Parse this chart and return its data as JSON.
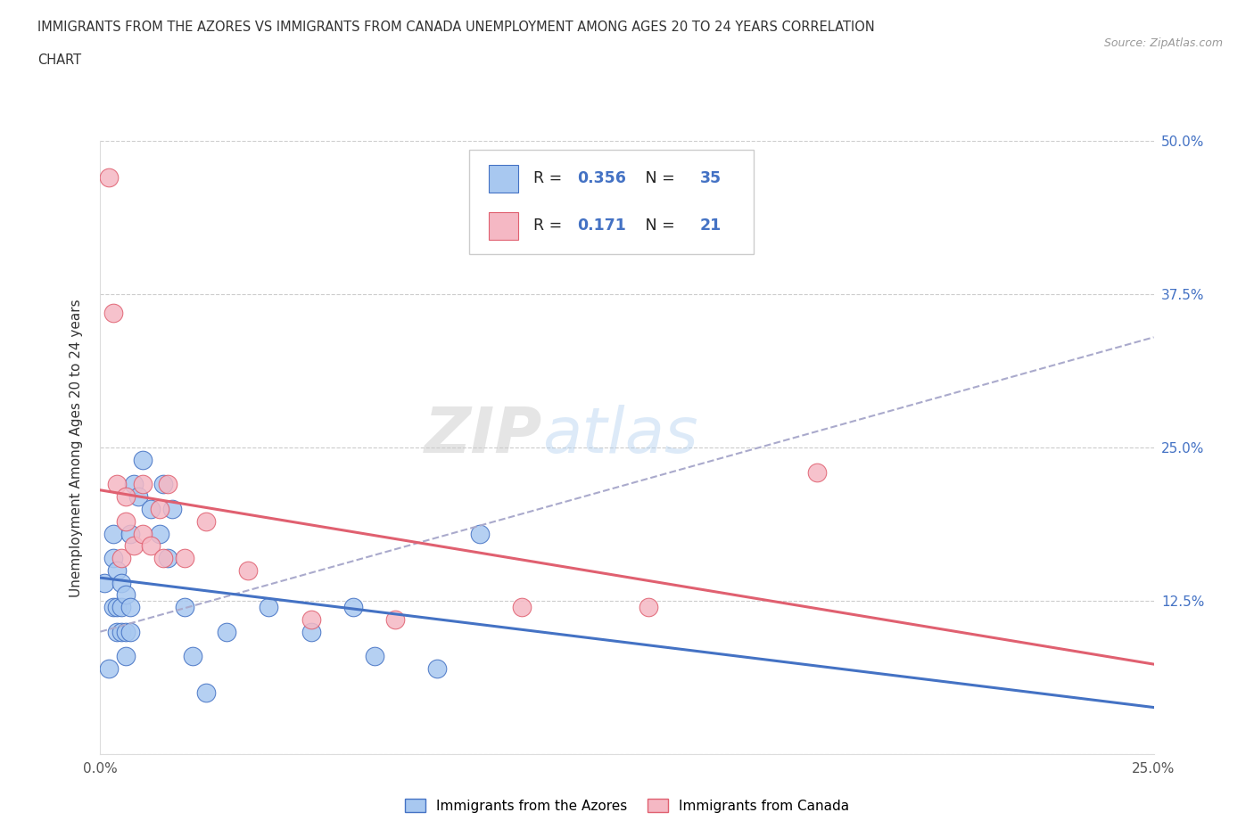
{
  "title_line1": "IMMIGRANTS FROM THE AZORES VS IMMIGRANTS FROM CANADA UNEMPLOYMENT AMONG AGES 20 TO 24 YEARS CORRELATION",
  "title_line2": "CHART",
  "source_text": "Source: ZipAtlas.com",
  "ylabel": "Unemployment Among Ages 20 to 24 years",
  "watermark_zip": "ZIP",
  "watermark_atlas": "atlas",
  "legend_label1": "Immigrants from the Azores",
  "legend_label2": "Immigrants from Canada",
  "R1": 0.356,
  "N1": 35,
  "R2": 0.171,
  "N2": 21,
  "color_blue": "#A8C8F0",
  "color_pink": "#F5B8C4",
  "line_color_blue": "#4472C4",
  "line_color_pink": "#E06070",
  "line_color_dash": "#AAAACC",
  "xlim": [
    0.0,
    0.25
  ],
  "ylim": [
    0.0,
    0.5
  ],
  "xticks": [
    0.0,
    0.025,
    0.05,
    0.075,
    0.1,
    0.125,
    0.15,
    0.175,
    0.2,
    0.225,
    0.25
  ],
  "yticks": [
    0.0,
    0.125,
    0.25,
    0.375,
    0.5
  ],
  "xtick_labels": [
    "0.0%",
    "",
    "",
    "",
    "",
    "",
    "",
    "",
    "",
    "",
    "25.0%"
  ],
  "ytick_right_labels": [
    "",
    "12.5%",
    "25.0%",
    "37.5%",
    "50.0%"
  ],
  "azores_x": [
    0.001,
    0.002,
    0.003,
    0.003,
    0.003,
    0.004,
    0.004,
    0.004,
    0.005,
    0.005,
    0.005,
    0.006,
    0.006,
    0.006,
    0.007,
    0.007,
    0.007,
    0.008,
    0.009,
    0.01,
    0.012,
    0.014,
    0.015,
    0.016,
    0.017,
    0.02,
    0.022,
    0.025,
    0.03,
    0.04,
    0.05,
    0.06,
    0.065,
    0.08,
    0.09
  ],
  "azores_y": [
    0.14,
    0.07,
    0.12,
    0.16,
    0.18,
    0.1,
    0.12,
    0.15,
    0.1,
    0.12,
    0.14,
    0.08,
    0.1,
    0.13,
    0.1,
    0.12,
    0.18,
    0.22,
    0.21,
    0.24,
    0.2,
    0.18,
    0.22,
    0.16,
    0.2,
    0.12,
    0.08,
    0.05,
    0.1,
    0.12,
    0.1,
    0.12,
    0.08,
    0.07,
    0.18
  ],
  "canada_x": [
    0.002,
    0.003,
    0.004,
    0.005,
    0.006,
    0.006,
    0.008,
    0.01,
    0.01,
    0.012,
    0.014,
    0.015,
    0.016,
    0.02,
    0.025,
    0.035,
    0.05,
    0.07,
    0.1,
    0.13,
    0.17
  ],
  "canada_y": [
    0.47,
    0.36,
    0.22,
    0.16,
    0.19,
    0.21,
    0.17,
    0.18,
    0.22,
    0.17,
    0.2,
    0.16,
    0.22,
    0.16,
    0.19,
    0.15,
    0.11,
    0.11,
    0.12,
    0.12,
    0.23
  ]
}
